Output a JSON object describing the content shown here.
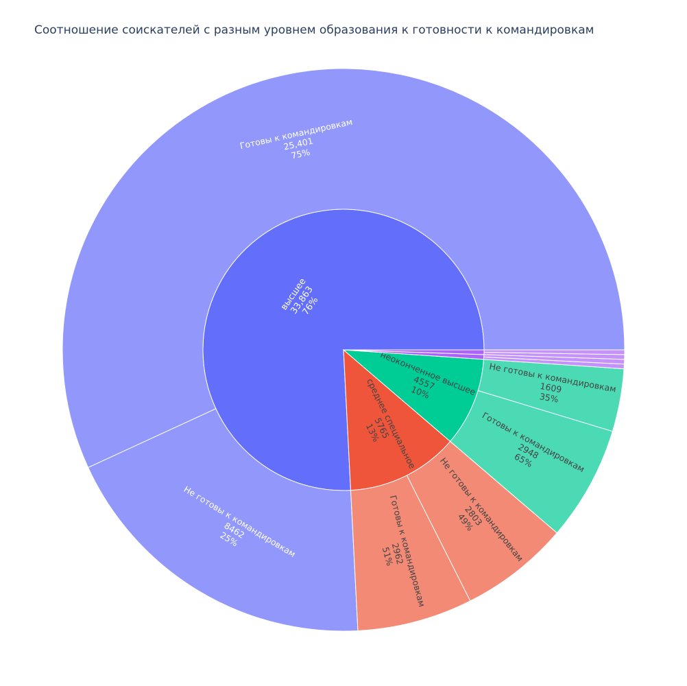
{
  "chart_data": {
    "type": "sunburst",
    "title": "Соотношение соискателей с разным уровнем образования к готовности к командировкам",
    "colors": {
      "высшее": "#636efa",
      "среднее специальное": "#ef553b",
      "неоконченное высшее": "#00cc96",
      "прочее_1": "#ab63fa",
      "прочее_2": "#ab63fa"
    },
    "children_colors": {
      "высшее": "#9197fb",
      "среднее специальное": "#f38a76",
      "неоконченное высшее": "#4cdab5",
      "прочее_1": "#c492fb",
      "прочее_2": "#c492fb"
    },
    "nodes": [
      {
        "label": "высшее",
        "value": 33863,
        "value_text": "33,863",
        "percent": "76%",
        "children": [
          {
            "label": "Готовы к командировкам",
            "value": 25401,
            "value_text": "25,401",
            "percent": "75%"
          },
          {
            "label": "Не готовы к командировкам",
            "value": 8462,
            "value_text": "8462",
            "percent": "25%"
          }
        ]
      },
      {
        "label": "среднее специальное",
        "value": 5765,
        "value_text": "5765",
        "percent": "13%",
        "children": [
          {
            "label": "Готовы к командировкам",
            "value": 2962,
            "value_text": "2962",
            "percent": "51%"
          },
          {
            "label": "Не готовы к командировкам",
            "value": 2803,
            "value_text": "2803",
            "percent": "49%"
          }
        ]
      },
      {
        "label": "неоконченное высшее",
        "value": 4557,
        "value_text": "4557",
        "percent": "10%",
        "children": [
          {
            "label": "Готовы к командировкам",
            "value": 2948,
            "value_text": "2948",
            "percent": "65%"
          },
          {
            "label": "Не готовы к командировкам",
            "value": 1609,
            "value_text": "1609",
            "percent": "35%"
          }
        ]
      },
      {
        "label": "",
        "value": 240,
        "value_text": "",
        "percent": "",
        "children": [
          {
            "label": "",
            "value": 120,
            "value_text": "",
            "percent": ""
          },
          {
            "label": "",
            "value": 120,
            "value_text": "",
            "percent": ""
          }
        ]
      },
      {
        "label": "",
        "value": 240,
        "value_text": "",
        "percent": "",
        "children": [
          {
            "label": "",
            "value": 120,
            "value_text": "",
            "percent": ""
          },
          {
            "label": "",
            "value": 120,
            "value_text": "",
            "percent": ""
          }
        ]
      }
    ]
  }
}
